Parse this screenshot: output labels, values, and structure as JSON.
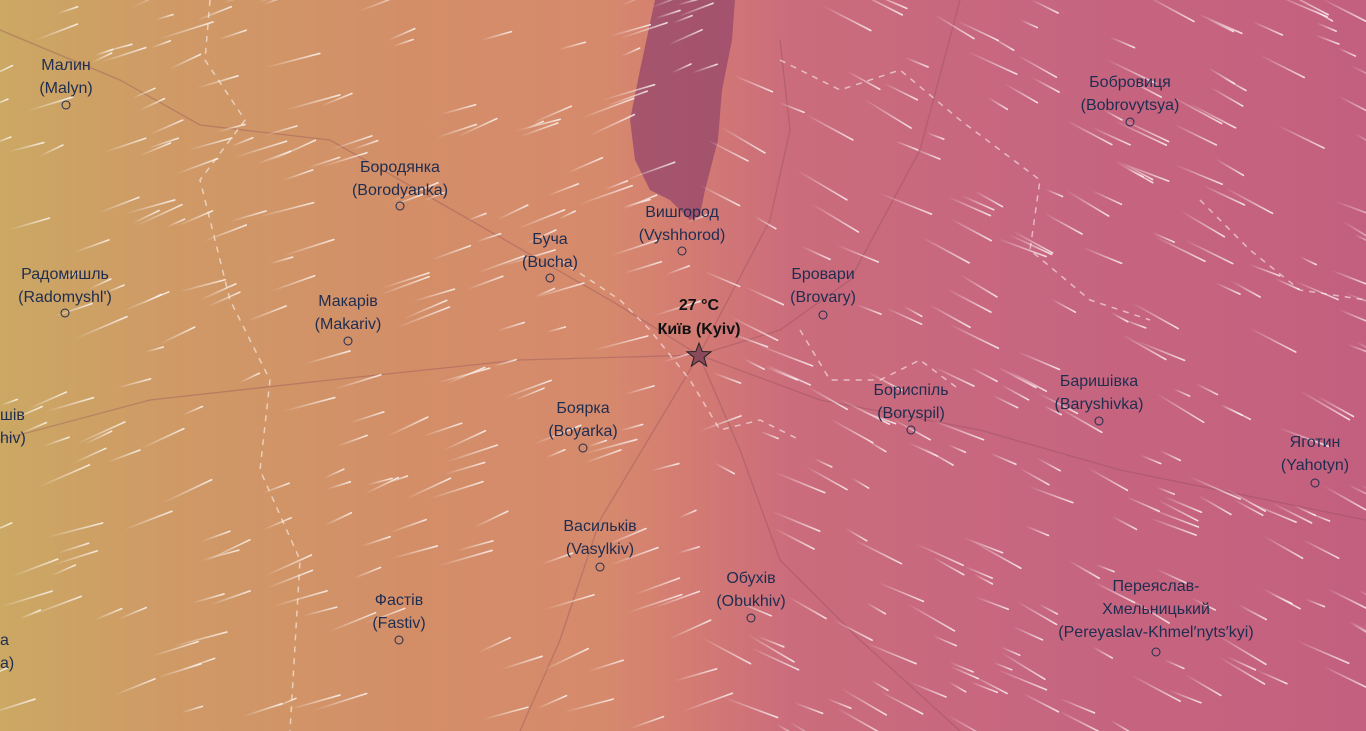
{
  "map": {
    "layer": "temperature",
    "overlay": "wind-particles",
    "colors": {
      "west": "#cba863",
      "center": "#d68a6c",
      "east": "#c4607f",
      "reservoir": "#9c4c6c",
      "label": "#1f2d50"
    },
    "highlight": {
      "temperature": "27 °C",
      "name": "Київ (Kyiv)",
      "icon": "star-icon"
    },
    "cities": [
      {
        "native": "Малин",
        "latin": "(Malyn)"
      },
      {
        "native": "Бородянка",
        "latin": "(Borodyanka)"
      },
      {
        "native": "Буча",
        "latin": "(Bucha)"
      },
      {
        "native": "Вишгород",
        "latin": "(Vyshhorod)"
      },
      {
        "native": "Бровари",
        "latin": "(Brovary)"
      },
      {
        "native": "Бобровиця",
        "latin": "(Bobrovytsya)"
      },
      {
        "native": "Радомишль",
        "latin": "(Radomyshl')"
      },
      {
        "native": "Макарів",
        "latin": "(Makariv)"
      },
      {
        "native": "Боярка",
        "latin": "(Boyarka)"
      },
      {
        "native": "Бориспіль",
        "latin": "(Boryspil)"
      },
      {
        "native": "Баришівка",
        "latin": "(Baryshivka)"
      },
      {
        "native": "Яготин",
        "latin": "(Yahotyn)"
      },
      {
        "native": "Васильків",
        "latin": "(Vasylkiv)"
      },
      {
        "native": "Обухів",
        "latin": "(Obukhiv)"
      },
      {
        "native": "Фастів",
        "latin": "(Fastiv)"
      },
      {
        "native": "Переяслав-\nХмельницький",
        "latin": "(Pereyaslav-Khmel′nyts′kyi)"
      }
    ],
    "partial_labels": [
      {
        "native": "шів",
        "latin": "hiv)"
      },
      {
        "native": "а",
        "latin": "а)"
      }
    ]
  }
}
